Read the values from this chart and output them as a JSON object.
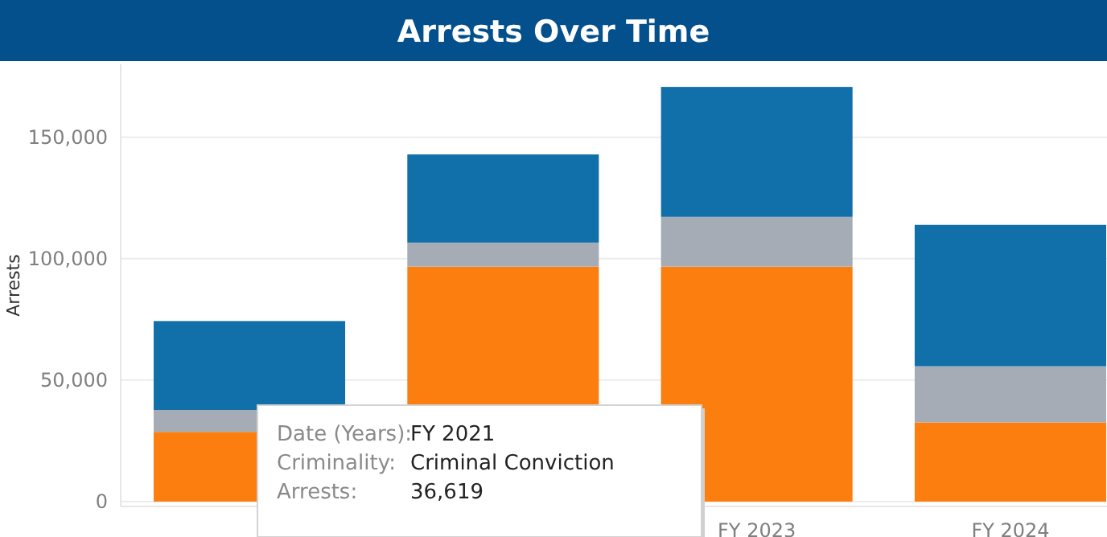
{
  "chart_data": {
    "type": "bar",
    "title": "Arrests Over Time",
    "ylabel": "Arrests",
    "stacked": true,
    "categories": [
      null,
      null,
      "FY 2023",
      "FY 2024"
    ],
    "series": [
      {
        "color": "#fc7e0f",
        "values": [
          28700,
          96700,
          96700,
          32600
        ]
      },
      {
        "color": "#a5acb6",
        "values": [
          9000,
          9900,
          20500,
          23100
        ]
      },
      {
        "color": "#1170aa",
        "values": [
          36619,
          36300,
          53500,
          58200
        ]
      }
    ],
    "ylim": [
      -2000,
      180000
    ],
    "yticks": [
      0,
      {
        "value": 50000,
        "label": "50,000"
      },
      {
        "value": 100000,
        "label": "100,000"
      },
      {
        "value": 150000,
        "label": "150,000"
      }
    ],
    "grid": "y",
    "annotations": [
      "Date (Years):",
      "FY 2021",
      "Criminality:",
      "Criminal Conviction",
      "Arrests:",
      "36,619"
    ]
  }
}
